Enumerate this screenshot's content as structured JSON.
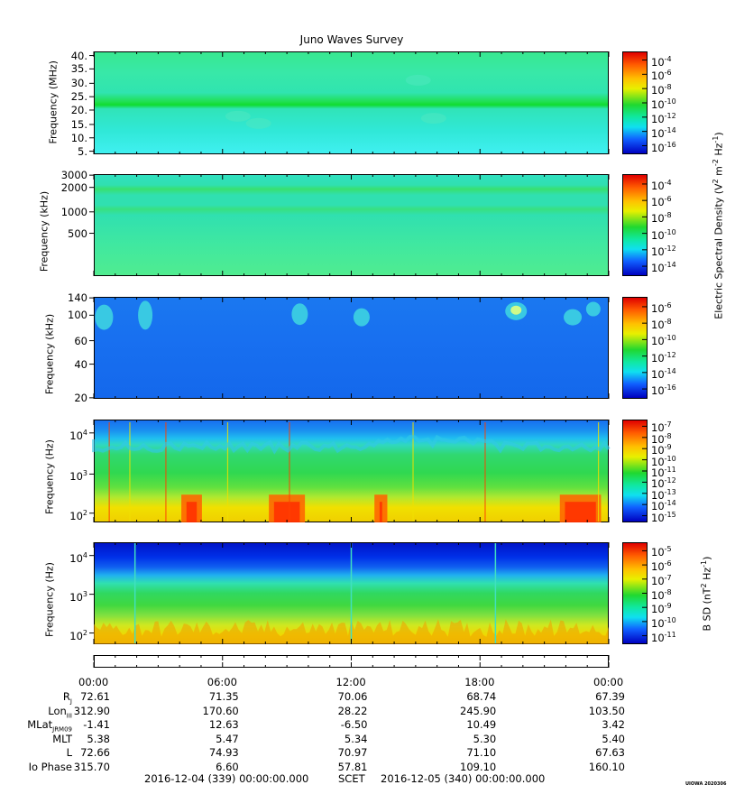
{
  "title": "Juno Waves Survey",
  "chart_data": [
    {
      "type": "heatmap",
      "panel": 1,
      "ylabel": "Frequency (MHz)",
      "yscale": "linear",
      "yticks": [
        "40.",
        "35.",
        "30.",
        "25.",
        "20.",
        "15.",
        "10.",
        "5."
      ],
      "ylim": [
        3.5,
        41.5
      ],
      "colorbar_ticks": [
        "10-4",
        "10-6",
        "10-8",
        "10-10",
        "10-12",
        "10-14",
        "10-16"
      ],
      "colorbar_range": [
        "1e-17",
        "1e-4"
      ],
      "colors": {
        "background": "#30e0b0",
        "band": "#20e040"
      }
    },
    {
      "type": "heatmap",
      "panel": 2,
      "ylabel": "Frequency (kHz)",
      "yscale": "log",
      "yticks": [
        "3000",
        "2000",
        "1000",
        "500"
      ],
      "ylim": [
        150,
        3000
      ],
      "colorbar_ticks": [
        "10-4",
        "10-6",
        "10-8",
        "10-10",
        "10-12",
        "10-14"
      ],
      "colorbar_range": [
        "1e-15",
        "1e-3"
      ],
      "colorbar_label": "Electric Spectral Density (V2 m-2 Hz-1)",
      "colors": {
        "background": "#30e0b0",
        "band": "#28e070"
      }
    },
    {
      "type": "heatmap",
      "panel": 3,
      "ylabel": "Frequency (kHz)",
      "yscale": "linear",
      "yticks": [
        "140",
        "100",
        "60",
        "40",
        "20"
      ],
      "ylim": [
        20,
        140
      ],
      "colorbar_ticks": [
        "10-6",
        "10-8",
        "10-10",
        "10-12",
        "10-14",
        "10-16"
      ],
      "colorbar_range": [
        "1e-17",
        "1e-5"
      ],
      "colors": {
        "background": "#1870f0",
        "spots": "#40e0d0"
      }
    },
    {
      "type": "heatmap",
      "panel": 4,
      "ylabel": "Frequency (Hz)",
      "yscale": "log",
      "yticks": [
        "10^4",
        "10^3",
        "10^2"
      ],
      "ylim": [
        50,
        20000
      ],
      "colorbar_ticks": [
        "10-7",
        "10-8",
        "10-9",
        "10-10",
        "10-11",
        "10-12",
        "10-13",
        "10-14",
        "10-15"
      ],
      "colorbar_range": [
        "1e-15",
        "1e-7"
      ],
      "colors": {
        "high": "#1870f0",
        "mid": "#30d850",
        "low": "#f0e000",
        "burst": "#ff3000"
      }
    },
    {
      "type": "heatmap",
      "panel": 5,
      "ylabel": "Frequency (Hz)",
      "yscale": "log",
      "yticks": [
        "10^4",
        "10^3",
        "10^2"
      ],
      "ylim": [
        50,
        25000
      ],
      "colorbar_ticks": [
        "10-5",
        "10-6",
        "10-7",
        "10-8",
        "10-9",
        "10-10",
        "10-11"
      ],
      "colorbar_range": [
        "1e-11",
        "1e-4"
      ],
      "colorbar_label": "B SD (nT2 Hz-1)",
      "colors": {
        "top": "#0018d0",
        "mid": "#20d860",
        "bottom": "#f0e000"
      }
    }
  ],
  "time_axis": {
    "labels": [
      "00:00",
      "06:00",
      "12:00",
      "18:00",
      "00:00"
    ]
  },
  "ephemeris": [
    {
      "name": "RJ",
      "values": [
        "72.61",
        "71.35",
        "70.06",
        "68.74",
        "67.39"
      ]
    },
    {
      "name": "LonIII",
      "values": [
        "312.90",
        "170.60",
        "28.22",
        "245.90",
        "103.50"
      ]
    },
    {
      "name": "MLatJRM09",
      "values": [
        "-1.41",
        "12.63",
        "-6.50",
        "10.49",
        "3.42"
      ]
    },
    {
      "name": "MLT",
      "values": [
        "5.38",
        "5.47",
        "5.34",
        "5.30",
        "5.40"
      ]
    },
    {
      "name": "L",
      "values": [
        "72.66",
        "74.93",
        "70.97",
        "71.10",
        "67.63"
      ]
    },
    {
      "name": "Io Phase",
      "values": [
        "315.70",
        "6.60",
        "57.81",
        "109.10",
        "160.10"
      ]
    }
  ],
  "footer": {
    "start": "2016-12-04 (339) 00:00:00.000",
    "scet": "SCET",
    "end": "2016-12-05 (340) 00:00:00.000",
    "stamp": "UIOWA 2020306"
  },
  "labels": {
    "mhz": "Frequency (MHz)",
    "khz": "Frequency (kHz)",
    "hz": "Frequency (Hz)",
    "esd_pre": "Electric Spectral Density (V",
    "esd_mid": " m",
    "esd_mid2": " Hz",
    "esd_end": ")",
    "bsd_pre": "B SD (nT",
    "bsd_mid": " Hz",
    "bsd_end": ")"
  }
}
